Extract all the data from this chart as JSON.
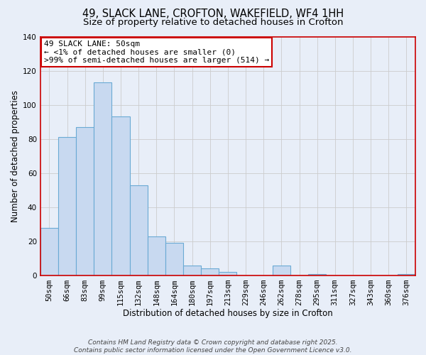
{
  "title": "49, SLACK LANE, CROFTON, WAKEFIELD, WF4 1HH",
  "subtitle": "Size of property relative to detached houses in Crofton",
  "bar_labels": [
    "50sqm",
    "66sqm",
    "83sqm",
    "99sqm",
    "115sqm",
    "132sqm",
    "148sqm",
    "164sqm",
    "180sqm",
    "197sqm",
    "213sqm",
    "229sqm",
    "246sqm",
    "262sqm",
    "278sqm",
    "295sqm",
    "311sqm",
    "327sqm",
    "343sqm",
    "360sqm",
    "376sqm"
  ],
  "bar_values": [
    28,
    81,
    87,
    113,
    93,
    53,
    23,
    19,
    6,
    4,
    2,
    0,
    0,
    6,
    0,
    1,
    0,
    0,
    0,
    0,
    1
  ],
  "bar_color": "#c8d9f0",
  "bar_edge_color": "#6aaad4",
  "highlight_bar_index": 0,
  "highlight_bar_edge_color": "#cc0000",
  "xlabel": "Distribution of detached houses by size in Crofton",
  "ylabel": "Number of detached properties",
  "ylim": [
    0,
    140
  ],
  "yticks": [
    0,
    20,
    40,
    60,
    80,
    100,
    120,
    140
  ],
  "grid_color": "#cccccc",
  "background_color": "#e8eef8",
  "plot_bg_color": "#e8eef8",
  "annotation_title": "49 SLACK LANE: 50sqm",
  "annotation_line1": "← <1% of detached houses are smaller (0)",
  "annotation_line2": ">99% of semi-detached houses are larger (514) →",
  "annotation_box_color": "#ffffff",
  "annotation_box_edge_color": "#cc0000",
  "footer_line1": "Contains HM Land Registry data © Crown copyright and database right 2025.",
  "footer_line2": "Contains public sector information licensed under the Open Government Licence v3.0.",
  "title_fontsize": 10.5,
  "subtitle_fontsize": 9.5,
  "axis_label_fontsize": 8.5,
  "tick_fontsize": 7.5,
  "annotation_fontsize": 8,
  "footer_fontsize": 6.5,
  "spine_color": "#cc0000",
  "spine_linewidth": 1.2
}
